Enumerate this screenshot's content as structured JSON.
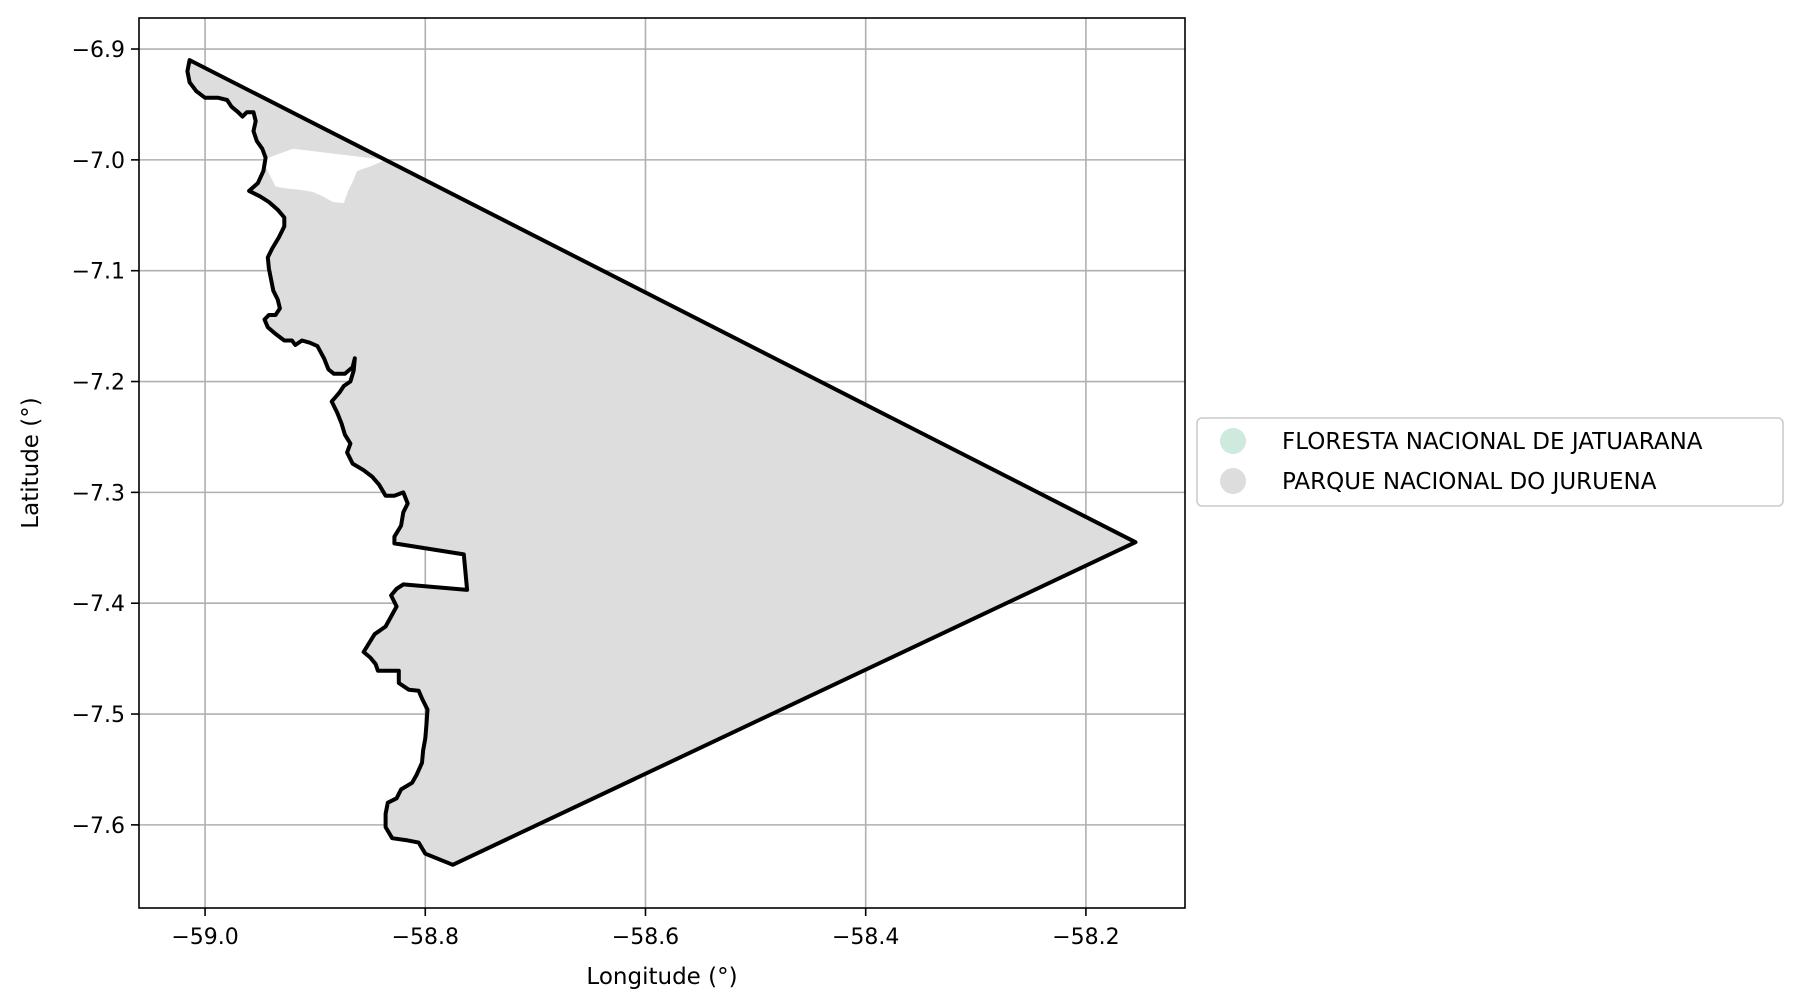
{
  "chart_data": {
    "type": "map",
    "xlabel": "Longitude (°)",
    "ylabel": "Latitude (°)",
    "xlim": [
      -59.06,
      -58.11
    ],
    "ylim": [
      -7.675,
      -6.872
    ],
    "grid": true,
    "legend_placement": "center-right, outside axes",
    "x_ticks": [
      {
        "value": -59.0,
        "label": "−59.0"
      },
      {
        "value": -58.8,
        "label": "−58.8"
      },
      {
        "value": -58.6,
        "label": "−58.6"
      },
      {
        "value": -58.4,
        "label": "−58.4"
      },
      {
        "value": -58.2,
        "label": "−58.2"
      }
    ],
    "y_ticks": [
      {
        "value": -6.9,
        "label": "−6.9"
      },
      {
        "value": -7.0,
        "label": "−7.0"
      },
      {
        "value": -7.1,
        "label": "−7.1"
      },
      {
        "value": -7.2,
        "label": "−7.2"
      },
      {
        "value": -7.3,
        "label": "−7.3"
      },
      {
        "value": -7.4,
        "label": "−7.4"
      },
      {
        "value": -7.5,
        "label": "−7.5"
      },
      {
        "value": -7.6,
        "label": "−7.6"
      }
    ],
    "legend": [
      {
        "label": "FLORESTA NACIONAL DE JATUARANA",
        "color": "#cdeadc"
      },
      {
        "label": "PARQUE NACIONAL DO JURUENA",
        "color": "#dddddd"
      }
    ],
    "fill_color": "#dddddd",
    "outline_color": "#000000",
    "outline": [
      [
        -59.014,
        -6.91
      ],
      [
        -59.016,
        -6.92
      ],
      [
        -59.014,
        -6.93
      ],
      [
        -59.008,
        -6.938
      ],
      [
        -59.0,
        -6.944
      ],
      [
        -58.988,
        -6.944
      ],
      [
        -58.98,
        -6.946
      ],
      [
        -58.976,
        -6.952
      ],
      [
        -58.97,
        -6.957
      ],
      [
        -58.966,
        -6.961
      ],
      [
        -58.962,
        -6.957
      ],
      [
        -58.956,
        -6.957
      ],
      [
        -58.954,
        -6.965
      ],
      [
        -58.956,
        -6.974
      ],
      [
        -58.953,
        -6.983
      ],
      [
        -58.948,
        -6.99
      ],
      [
        -58.945,
        -6.998
      ],
      [
        -58.947,
        -7.01
      ],
      [
        -58.952,
        -7.021
      ],
      [
        -58.96,
        -7.028
      ],
      [
        -58.95,
        -7.033
      ],
      [
        -58.942,
        -7.038
      ],
      [
        -58.934,
        -7.045
      ],
      [
        -58.928,
        -7.052
      ],
      [
        -58.928,
        -7.06
      ],
      [
        -58.933,
        -7.07
      ],
      [
        -58.939,
        -7.08
      ],
      [
        -58.943,
        -7.088
      ],
      [
        -58.942,
        -7.098
      ],
      [
        -58.94,
        -7.108
      ],
      [
        -58.938,
        -7.118
      ],
      [
        -58.934,
        -7.126
      ],
      [
        -58.932,
        -7.134
      ],
      [
        -58.936,
        -7.14
      ],
      [
        -58.942,
        -7.14
      ],
      [
        -58.946,
        -7.144
      ],
      [
        -58.943,
        -7.151
      ],
      [
        -58.936,
        -7.157
      ],
      [
        -58.928,
        -7.163
      ],
      [
        -58.921,
        -7.163
      ],
      [
        -58.918,
        -7.167
      ],
      [
        -58.912,
        -7.163
      ],
      [
        -58.905,
        -7.165
      ],
      [
        -58.898,
        -7.168
      ],
      [
        -58.892,
        -7.179
      ],
      [
        -58.888,
        -7.189
      ],
      [
        -58.883,
        -7.193
      ],
      [
        -58.873,
        -7.193
      ],
      [
        -58.866,
        -7.187
      ],
      [
        -58.864,
        -7.179
      ],
      [
        -58.865,
        -7.19
      ],
      [
        -58.868,
        -7.2
      ],
      [
        -58.874,
        -7.204
      ],
      [
        -58.878,
        -7.21
      ],
      [
        -58.885,
        -7.218
      ],
      [
        -58.88,
        -7.228
      ],
      [
        -58.876,
        -7.238
      ],
      [
        -58.873,
        -7.248
      ],
      [
        -58.868,
        -7.256
      ],
      [
        -58.871,
        -7.264
      ],
      [
        -58.866,
        -7.274
      ],
      [
        -58.856,
        -7.28
      ],
      [
        -58.848,
        -7.286
      ],
      [
        -58.842,
        -7.293
      ],
      [
        -58.836,
        -7.303
      ],
      [
        -58.828,
        -7.303
      ],
      [
        -58.82,
        -7.3
      ],
      [
        -58.816,
        -7.31
      ],
      [
        -58.82,
        -7.318
      ],
      [
        -58.822,
        -7.33
      ],
      [
        -58.828,
        -7.34
      ],
      [
        -58.828,
        -7.346
      ],
      [
        -58.765,
        -7.356
      ],
      [
        -58.762,
        -7.388
      ],
      [
        -58.82,
        -7.383
      ],
      [
        -58.826,
        -7.387
      ],
      [
        -58.831,
        -7.393
      ],
      [
        -58.826,
        -7.403
      ],
      [
        -58.831,
        -7.412
      ],
      [
        -58.836,
        -7.421
      ],
      [
        -58.846,
        -7.428
      ],
      [
        -58.856,
        -7.444
      ],
      [
        -58.85,
        -7.449
      ],
      [
        -58.845,
        -7.455
      ],
      [
        -58.843,
        -7.461
      ],
      [
        -58.824,
        -7.461
      ],
      [
        -58.824,
        -7.472
      ],
      [
        -58.815,
        -7.478
      ],
      [
        -58.806,
        -7.479
      ],
      [
        -58.803,
        -7.486
      ],
      [
        -58.798,
        -7.496
      ],
      [
        -58.799,
        -7.51
      ],
      [
        -58.8,
        -7.522
      ],
      [
        -58.802,
        -7.533
      ],
      [
        -58.803,
        -7.544
      ],
      [
        -58.808,
        -7.555
      ],
      [
        -58.812,
        -7.562
      ],
      [
        -58.822,
        -7.568
      ],
      [
        -58.826,
        -7.576
      ],
      [
        -58.834,
        -7.58
      ],
      [
        -58.836,
        -7.59
      ],
      [
        -58.836,
        -7.602
      ],
      [
        -58.83,
        -7.612
      ],
      [
        -58.816,
        -7.614
      ],
      [
        -58.806,
        -7.616
      ],
      [
        -58.8,
        -7.626
      ],
      [
        -58.775,
        -7.636
      ],
      [
        -58.155,
        -7.345
      ],
      [
        -59.014,
        -6.91
      ]
    ],
    "unfilled_notch": [
      [
        -58.948,
        -7.0
      ],
      [
        -58.942,
        -7.012
      ],
      [
        -58.936,
        -7.024
      ],
      [
        -58.924,
        -7.026
      ],
      [
        -58.914,
        -7.027
      ],
      [
        -58.902,
        -7.029
      ],
      [
        -58.893,
        -7.033
      ],
      [
        -58.884,
        -7.038
      ],
      [
        -58.874,
        -7.039
      ],
      [
        -58.87,
        -7.028
      ],
      [
        -58.866,
        -7.02
      ],
      [
        -58.862,
        -7.01
      ],
      [
        -58.85,
        -7.006
      ],
      [
        -58.836,
        -7.0
      ],
      [
        -58.92,
        -6.99
      ]
    ]
  }
}
